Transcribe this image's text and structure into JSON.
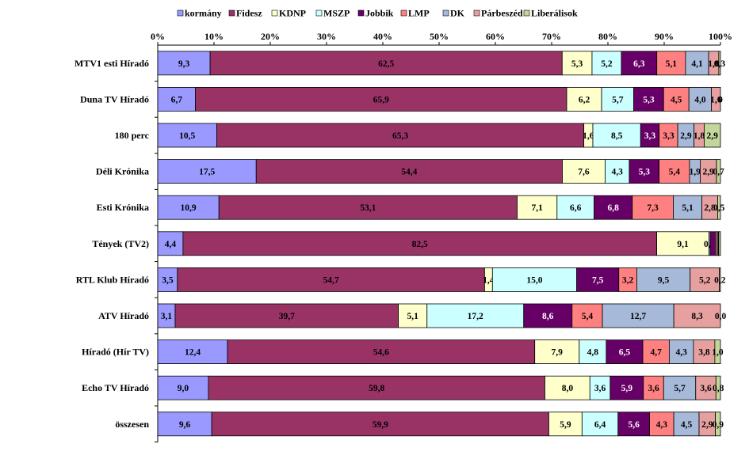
{
  "chart_data": {
    "type": "bar",
    "orientation": "horizontal",
    "stacked": "percent",
    "xlim": [
      0,
      100
    ],
    "ticks": [
      "0%",
      "10%",
      "20%",
      "30%",
      "40%",
      "50%",
      "60%",
      "70%",
      "80%",
      "90%",
      "100%"
    ],
    "legend_position": "top",
    "grid": false,
    "categories": [
      "MTV1 esti Híradó",
      "Duna TV Híradó",
      "180 perc",
      "Déli Krónika",
      "Esti Krónika",
      "Tények (TV2)",
      "RTL Klub Híradó",
      "ATV Híradó",
      "Híradó (Hír TV)",
      "Echo TV Híradó",
      "összesen"
    ],
    "series": [
      {
        "name": "kormány",
        "color": "#9999ff",
        "text_color": "#000000",
        "values": [
          9.3,
          6.7,
          10.5,
          17.5,
          10.9,
          4.4,
          3.5,
          3.1,
          12.4,
          9.0,
          9.6
        ],
        "labels": [
          "9,3",
          "6,7",
          "10,5",
          "17,5",
          "10,9",
          "4,4",
          "3,5",
          "3,1",
          "12,4",
          "9,0",
          "9,6"
        ]
      },
      {
        "name": "Fidesz",
        "color": "#993366",
        "text_color": "#000000",
        "values": [
          62.5,
          65.9,
          65.3,
          54.4,
          53.1,
          82.5,
          54.7,
          39.7,
          54.6,
          59.8,
          59.9
        ],
        "labels": [
          "62,5",
          "65,9",
          "65,3",
          "54,4",
          "53,1",
          "82,5",
          "54,7",
          "39,7",
          "54,6",
          "59,8",
          "59,9"
        ]
      },
      {
        "name": "KDNP",
        "color": "#ffffcc",
        "text_color": "#000000",
        "values": [
          5.3,
          6.2,
          1.6,
          7.6,
          7.1,
          9.1,
          1.4,
          5.1,
          7.9,
          8.0,
          5.9
        ],
        "labels": [
          "5,3",
          "6,2",
          "1,6",
          "7,6",
          "7,1",
          "9,1",
          "1,4",
          "5,1",
          "7,9",
          "8,0",
          "5,9"
        ]
      },
      {
        "name": "MSZP",
        "color": "#ccffff",
        "text_color": "#000000",
        "values": [
          5.2,
          5.7,
          8.5,
          4.3,
          6.6,
          0.2,
          15.0,
          17.2,
          4.8,
          3.6,
          6.4
        ],
        "labels": [
          "5,2",
          "5,7",
          "8,5",
          "4,3",
          "6,6",
          "0,2",
          "15,0",
          "17,2",
          "4,8",
          "3,6",
          "6,4"
        ]
      },
      {
        "name": "Jobbik",
        "color": "#660066",
        "text_color": "#ffffff",
        "values": [
          6.3,
          5.3,
          3.3,
          5.3,
          6.8,
          0.9,
          7.5,
          8.6,
          6.5,
          5.9,
          5.6
        ],
        "labels": [
          "6,3",
          "5,3",
          "3,3",
          "5,3",
          "6,8",
          "",
          "7,5",
          "8,6",
          "6,5",
          "5,9",
          "5,6"
        ]
      },
      {
        "name": "LMP",
        "color": "#ff8080",
        "text_color": "#000000",
        "values": [
          5.1,
          4.5,
          3.3,
          5.4,
          7.3,
          0.3,
          3.2,
          5.4,
          4.7,
          3.6,
          4.3
        ],
        "labels": [
          "5,1",
          "4,5",
          "3,3",
          "5,4",
          "7,3",
          "",
          "3,2",
          "5,4",
          "4,7",
          "3,6",
          "4,3"
        ]
      },
      {
        "name": "DK",
        "color": "#a6b9d9",
        "text_color": "#000000",
        "values": [
          4.1,
          4.0,
          2.9,
          1.9,
          5.1,
          0.2,
          9.5,
          12.7,
          4.3,
          5.7,
          4.5
        ],
        "labels": [
          "4,1",
          "4,0",
          "2,9",
          "1,9",
          "5,1",
          "",
          "9,5",
          "12,7",
          "4,3",
          "5,7",
          "4,5"
        ]
      },
      {
        "name": "Párbeszéd",
        "color": "#e6a0a0",
        "text_color": "#000000",
        "values": [
          1.8,
          1.6,
          1.8,
          2.9,
          2.8,
          0.1,
          5.2,
          8.3,
          3.8,
          3.6,
          2.9
        ],
        "labels": [
          "1,8",
          "1,6",
          "1,8",
          "2,9",
          "2,8",
          "",
          "5,2",
          "8,3",
          "3,8",
          "3,6",
          "2,9"
        ]
      },
      {
        "name": "Liberálisok",
        "color": "#c3d69b",
        "text_color": "#000000",
        "values": [
          0.3,
          0.0,
          2.9,
          0.7,
          0.5,
          0.3,
          0.2,
          0.0,
          1.0,
          0.8,
          0.9
        ],
        "labels": [
          "0,3",
          "0",
          "2,9",
          "0,7",
          "0,5",
          "",
          "0,2",
          "0,0",
          "1,0",
          "0,8",
          "0,9"
        ]
      }
    ]
  }
}
